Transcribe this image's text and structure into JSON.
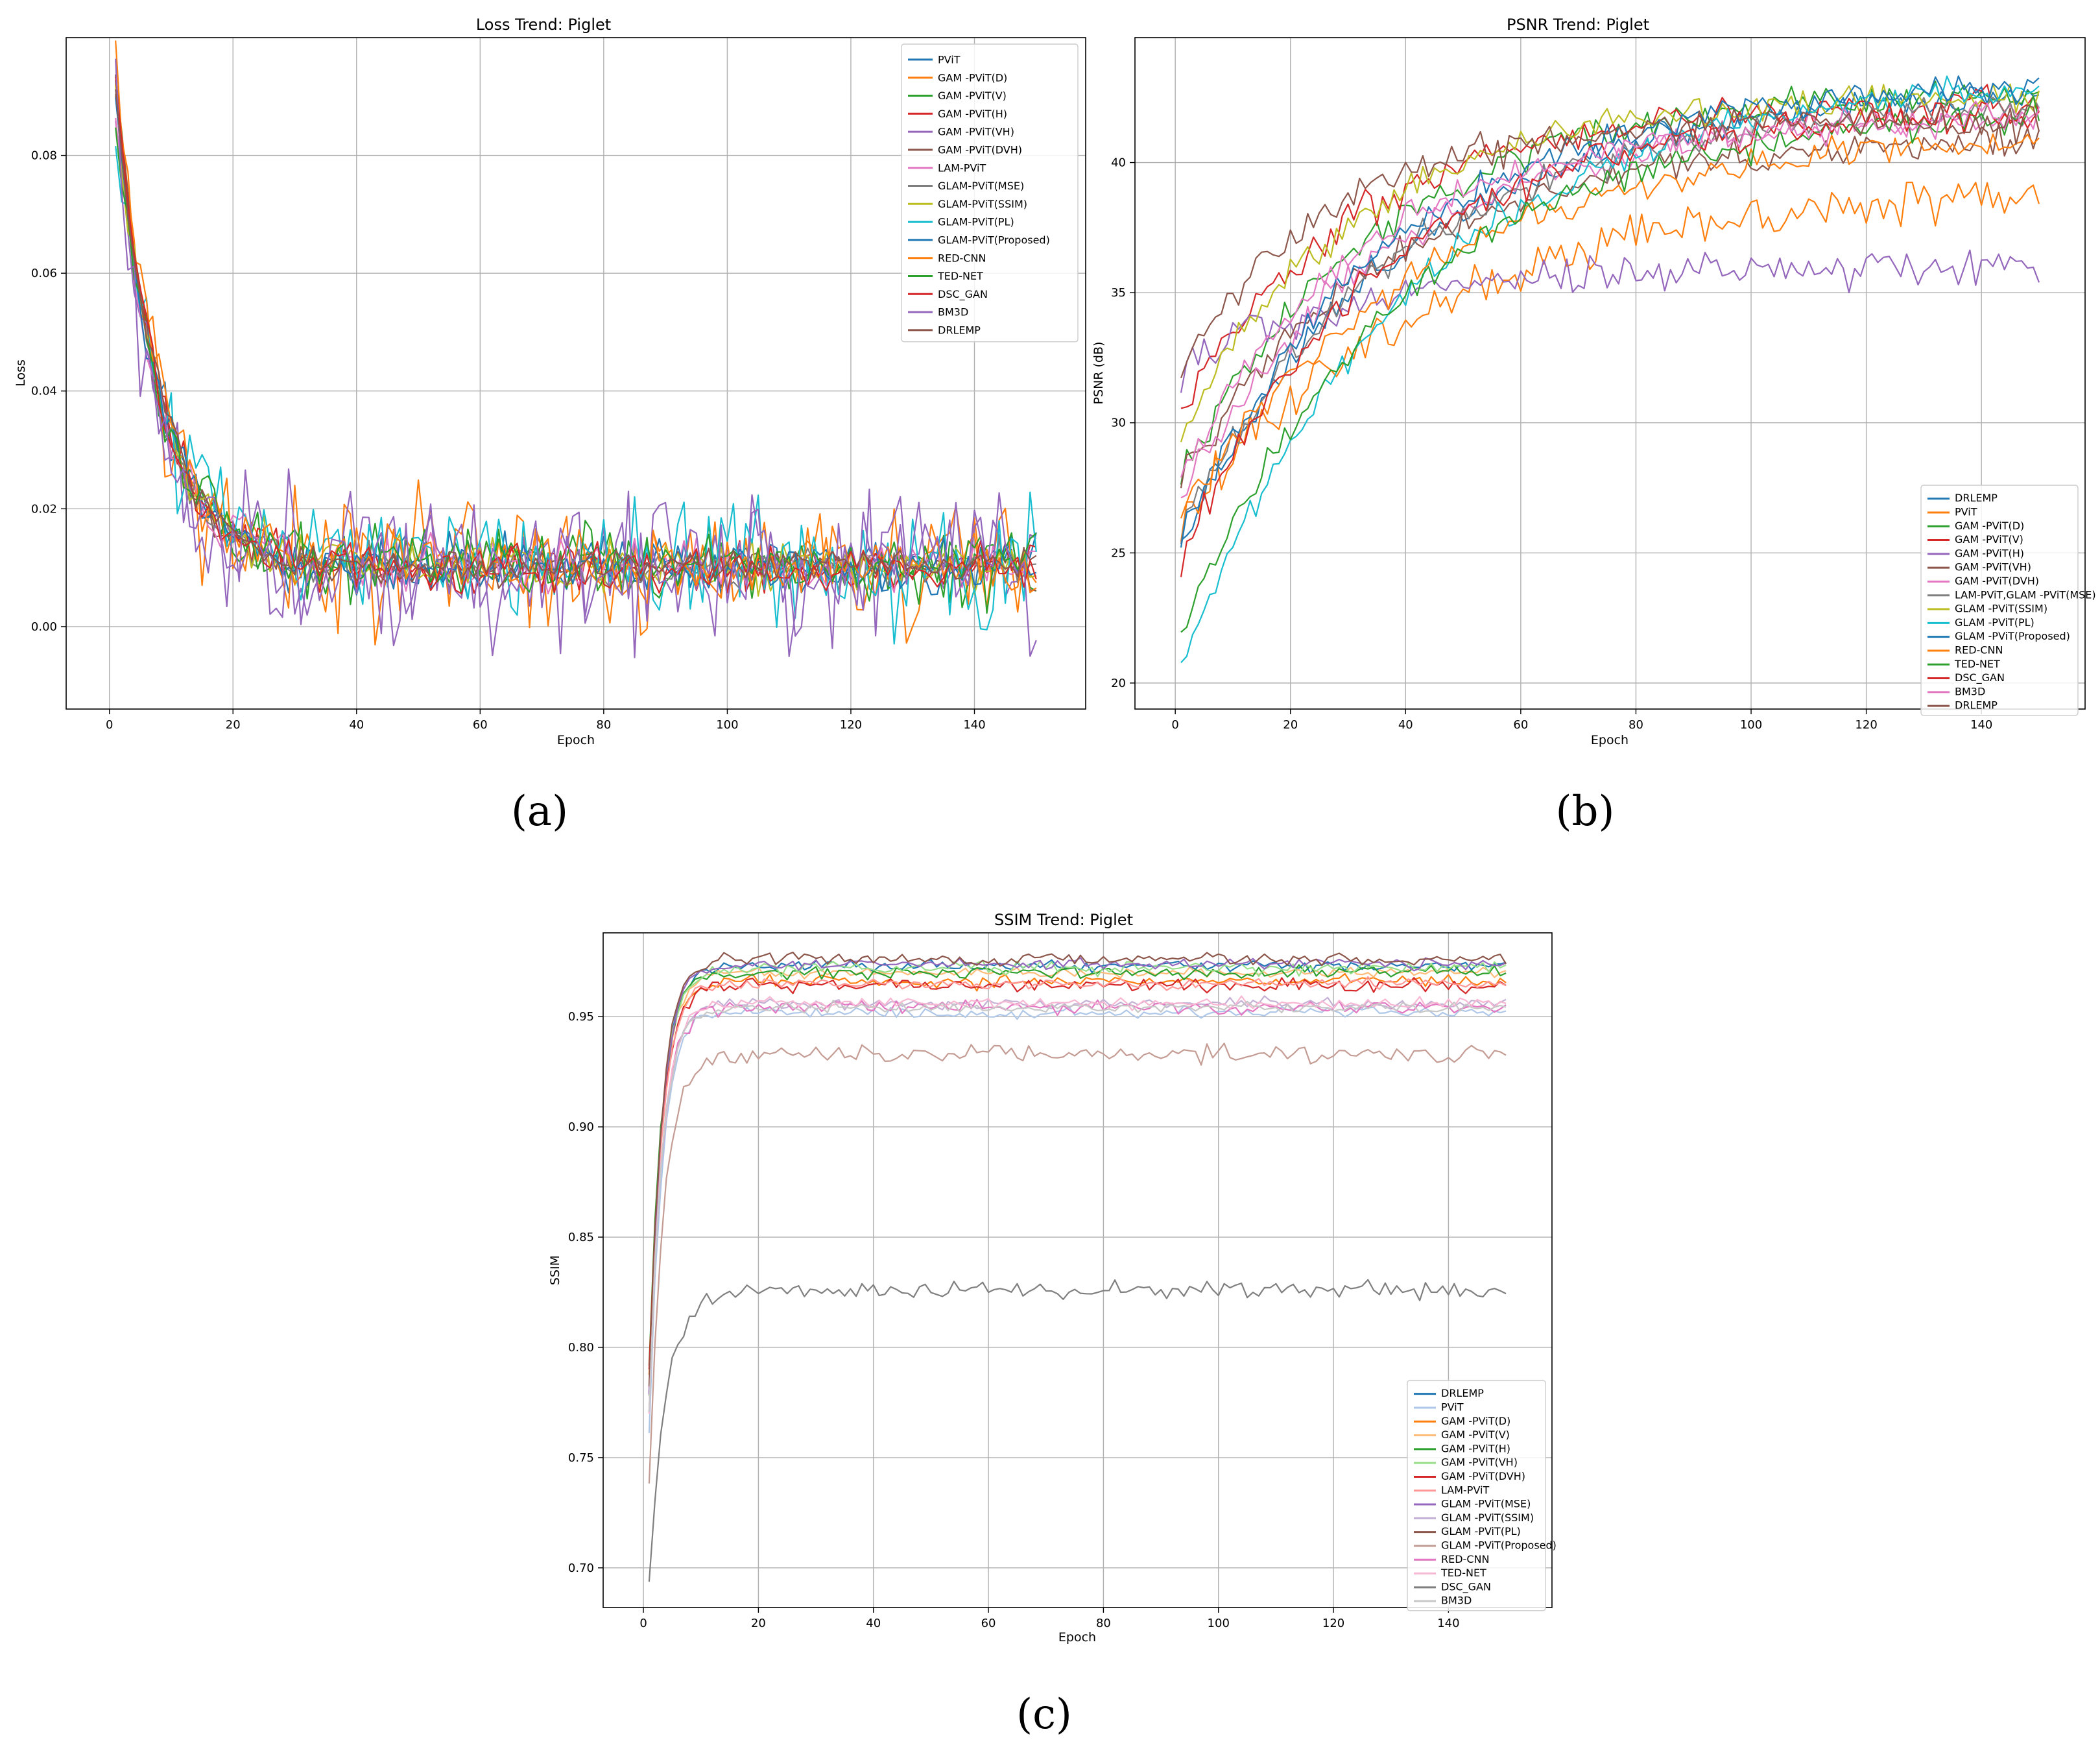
{
  "panels": [
    {
      "label": "(a)"
    },
    {
      "label": "(b)"
    },
    {
      "label": "(c)"
    }
  ],
  "chart_data": [
    {
      "id": "loss",
      "type": "line",
      "title": "Loss Trend: Piglet",
      "xlabel": "Epoch",
      "ylabel": "Loss",
      "xlim": [
        -7,
        158
      ],
      "ylim": [
        -0.014,
        0.1
      ],
      "xticks": [
        0,
        20,
        40,
        60,
        80,
        100,
        120,
        140
      ],
      "yticks": [
        0.0,
        0.02,
        0.04,
        0.06,
        0.08
      ],
      "ytick_labels": [
        "0.00",
        "0.02",
        "0.04",
        "0.06",
        "0.08"
      ],
      "grid": true,
      "legend_position": "top-right",
      "epochs": 150,
      "series": [
        {
          "name": "PViT",
          "color": "#1f77b4",
          "start": 0.092,
          "plateau": 0.0102,
          "tau": 7,
          "noise": 0.0025
        },
        {
          "name": "GAM -PViT(D)",
          "color": "#ff7f0e",
          "start": 0.095,
          "plateau": 0.0105,
          "tau": 7,
          "noise": 0.0055
        },
        {
          "name": "GAM -PViT(V)",
          "color": "#2ca02c",
          "start": 0.09,
          "plateau": 0.0103,
          "tau": 7,
          "noise": 0.003
        },
        {
          "name": "GAM -PViT(H)",
          "color": "#d62728",
          "start": 0.093,
          "plateau": 0.0101,
          "tau": 7,
          "noise": 0.002
        },
        {
          "name": "GAM -PViT(VH)",
          "color": "#9467bd",
          "start": 0.086,
          "plateau": 0.01,
          "tau": 7,
          "noise": 0.006
        },
        {
          "name": "GAM -PViT(DVH)",
          "color": "#8c564b",
          "start": 0.091,
          "plateau": 0.0102,
          "tau": 7,
          "noise": 0.002
        },
        {
          "name": "LAM-PViT",
          "color": "#e377c2",
          "start": 0.089,
          "plateau": 0.0104,
          "tau": 7,
          "noise": 0.0022
        },
        {
          "name": "GLAM-PViT(MSE)",
          "color": "#7f7f7f",
          "start": 0.09,
          "plateau": 0.0102,
          "tau": 7,
          "noise": 0.002
        },
        {
          "name": "GLAM-PViT(SSIM)",
          "color": "#bcbd22",
          "start": 0.088,
          "plateau": 0.0103,
          "tau": 7,
          "noise": 0.0025
        },
        {
          "name": "GLAM-PViT(PL)",
          "color": "#17becf",
          "start": 0.087,
          "plateau": 0.0101,
          "tau": 7,
          "noise": 0.0055
        },
        {
          "name": "GLAM-PViT(Proposed)",
          "color": "#1f77b4",
          "start": 0.089,
          "plateau": 0.01,
          "tau": 7,
          "noise": 0.002
        },
        {
          "name": "RED-CNN",
          "color": "#ff7f0e",
          "start": 0.094,
          "plateau": 0.0104,
          "tau": 7,
          "noise": 0.003
        },
        {
          "name": "TED-NET",
          "color": "#2ca02c",
          "start": 0.087,
          "plateau": 0.0103,
          "tau": 7,
          "noise": 0.003
        },
        {
          "name": "DSC_GAN",
          "color": "#d62728",
          "start": 0.092,
          "plateau": 0.0101,
          "tau": 7,
          "noise": 0.002
        },
        {
          "name": "BM3D",
          "color": "#9467bd",
          "start": 0.083,
          "plateau": 0.01,
          "tau": 7,
          "noise": 0.0065
        },
        {
          "name": "DRLEMP",
          "color": "#8c564b",
          "start": 0.092,
          "plateau": 0.0102,
          "tau": 7,
          "noise": 0.0015
        }
      ]
    },
    {
      "id": "psnr",
      "type": "line",
      "title": "PSNR Trend: Piglet",
      "xlabel": "Epoch",
      "ylabel": "PSNR (dB)",
      "xlim": [
        -7,
        158
      ],
      "ylim": [
        19.0,
        44.8
      ],
      "xticks": [
        0,
        20,
        40,
        60,
        80,
        100,
        120,
        140
      ],
      "yticks": [
        20,
        25,
        30,
        35,
        40
      ],
      "ytick_labels": [
        "20",
        "25",
        "30",
        "35",
        "40"
      ],
      "grid": true,
      "legend_position": "bottom-right",
      "epochs": 150,
      "series": [
        {
          "name": "DRLEMP",
          "color": "#1f77b4",
          "start": 25.5,
          "plateau": 43.0,
          "tau": 38,
          "noise": 0.3
        },
        {
          "name": "PViT",
          "color": "#ff7f0e",
          "start": 26.5,
          "plateau": 39.3,
          "tau": 45,
          "noise": 0.4
        },
        {
          "name": "GAM -PViT(D)",
          "color": "#2ca02c",
          "start": 28.0,
          "plateau": 42.9,
          "tau": 35,
          "noise": 0.3
        },
        {
          "name": "GAM -PViT(V)",
          "color": "#d62728",
          "start": 30.5,
          "plateau": 42.3,
          "tau": 30,
          "noise": 0.35
        },
        {
          "name": "GAM -PViT(H)",
          "color": "#9467bd",
          "start": 32.0,
          "plateau": 36.0,
          "tau": 28,
          "noise": 0.35
        },
        {
          "name": "GAM -PViT(VH)",
          "color": "#8c564b",
          "start": 27.8,
          "plateau": 41.0,
          "tau": 35,
          "noise": 0.3
        },
        {
          "name": "GAM -PViT(DVH)",
          "color": "#e377c2",
          "start": 27.0,
          "plateau": 42.0,
          "tau": 35,
          "noise": 0.3
        },
        {
          "name": "LAM-PViT,GLAM -PViT(MSE)",
          "color": "#7f7f7f",
          "start": 26.0,
          "plateau": 42.5,
          "tau": 38,
          "noise": 0.3
        },
        {
          "name": "GLAM -PViT(SSIM)",
          "color": "#bcbd22",
          "start": 29.5,
          "plateau": 42.6,
          "tau": 30,
          "noise": 0.3
        },
        {
          "name": "GLAM -PViT(PL)",
          "color": "#17becf",
          "start": 20.6,
          "plateau": 43.5,
          "tau": 40,
          "noise": 0.3
        },
        {
          "name": "GLAM -PViT(Proposed)",
          "color": "#1f77b4",
          "start": 25.8,
          "plateau": 43.2,
          "tau": 36,
          "noise": 0.3
        },
        {
          "name": "RED-CNN",
          "color": "#ff7f0e",
          "start": 26.5,
          "plateau": 41.3,
          "tau": 42,
          "noise": 0.3
        },
        {
          "name": "TED-NET",
          "color": "#2ca02c",
          "start": 21.7,
          "plateau": 42.2,
          "tau": 38,
          "noise": 0.3
        },
        {
          "name": "DSC_GAN",
          "color": "#d62728",
          "start": 24.6,
          "plateau": 42.0,
          "tau": 33,
          "noise": 0.3
        },
        {
          "name": "BM3D",
          "color": "#e377c2",
          "start": 28.0,
          "plateau": 41.8,
          "tau": 32,
          "noise": 0.3
        },
        {
          "name": "DRLEMP",
          "color": "#8c564b",
          "start": 32.0,
          "plateau": 41.6,
          "tau": 25,
          "noise": 0.3
        }
      ]
    },
    {
      "id": "ssim",
      "type": "line",
      "title": "SSIM Trend: Piglet",
      "xlabel": "Epoch",
      "ylabel": "SSIM",
      "xlim": [
        -7,
        158
      ],
      "ylim": [
        0.682,
        0.988
      ],
      "xticks": [
        0,
        20,
        40,
        60,
        80,
        100,
        120,
        140
      ],
      "yticks": [
        0.7,
        0.75,
        0.8,
        0.85,
        0.9,
        0.95
      ],
      "ytick_labels": [
        "0.70",
        "0.75",
        "0.80",
        "0.85",
        "0.90",
        "0.95"
      ],
      "grid": true,
      "legend_position": "bottom-right",
      "epochs": 150,
      "series": [
        {
          "name": "DRLEMP",
          "color": "#1f77b4",
          "start": 0.78,
          "plateau": 0.973,
          "tau": 2.2,
          "noise": 0.0012
        },
        {
          "name": "PViT",
          "color": "#aec7e8",
          "start": 0.76,
          "plateau": 0.952,
          "tau": 2.2,
          "noise": 0.0012
        },
        {
          "name": "GAM -PViT(D)",
          "color": "#ff7f0e",
          "start": 0.79,
          "plateau": 0.966,
          "tau": 2.2,
          "noise": 0.0015
        },
        {
          "name": "GAM -PViT(V)",
          "color": "#ffbb78",
          "start": 0.78,
          "plateau": 0.97,
          "tau": 2.2,
          "noise": 0.0012
        },
        {
          "name": "GAM -PViT(H)",
          "color": "#2ca02c",
          "start": 0.79,
          "plateau": 0.97,
          "tau": 2.2,
          "noise": 0.0015
        },
        {
          "name": "GAM -PViT(VH)",
          "color": "#98df8a",
          "start": 0.78,
          "plateau": 0.972,
          "tau": 2.2,
          "noise": 0.0015
        },
        {
          "name": "GAM -PViT(DVH)",
          "color": "#d62728",
          "start": 0.79,
          "plateau": 0.964,
          "tau": 2.2,
          "noise": 0.0015
        },
        {
          "name": "LAM-PViT",
          "color": "#ff9896",
          "start": 0.78,
          "plateau": 0.965,
          "tau": 2.2,
          "noise": 0.0012
        },
        {
          "name": "GLAM -PViT(MSE)",
          "color": "#9467bd",
          "start": 0.78,
          "plateau": 0.974,
          "tau": 2.2,
          "noise": 0.0012
        },
        {
          "name": "GLAM -PViT(SSIM)",
          "color": "#c5b0d5",
          "start": 0.77,
          "plateau": 0.956,
          "tau": 2.2,
          "noise": 0.0012
        },
        {
          "name": "GLAM -PViT(PL)",
          "color": "#8c564b",
          "start": 0.78,
          "plateau": 0.976,
          "tau": 2.2,
          "noise": 0.0015
        },
        {
          "name": "GLAM -PViT(Proposed)",
          "color": "#c49c94",
          "start": 0.74,
          "plateau": 0.933,
          "tau": 2.5,
          "noise": 0.0018
        },
        {
          "name": "RED-CNN",
          "color": "#e377c2",
          "start": 0.77,
          "plateau": 0.954,
          "tau": 2.2,
          "noise": 0.0015
        },
        {
          "name": "TED-NET",
          "color": "#f7b6d2",
          "start": 0.77,
          "plateau": 0.956,
          "tau": 2.2,
          "noise": 0.0012
        },
        {
          "name": "DSC_GAN",
          "color": "#7f7f7f",
          "start": 0.695,
          "plateau": 0.826,
          "tau": 3.0,
          "noise": 0.0018
        },
        {
          "name": "BM3D",
          "color": "#c7c7c7",
          "start": 0.77,
          "plateau": 0.954,
          "tau": 2.2,
          "noise": 0.0012
        }
      ]
    }
  ]
}
